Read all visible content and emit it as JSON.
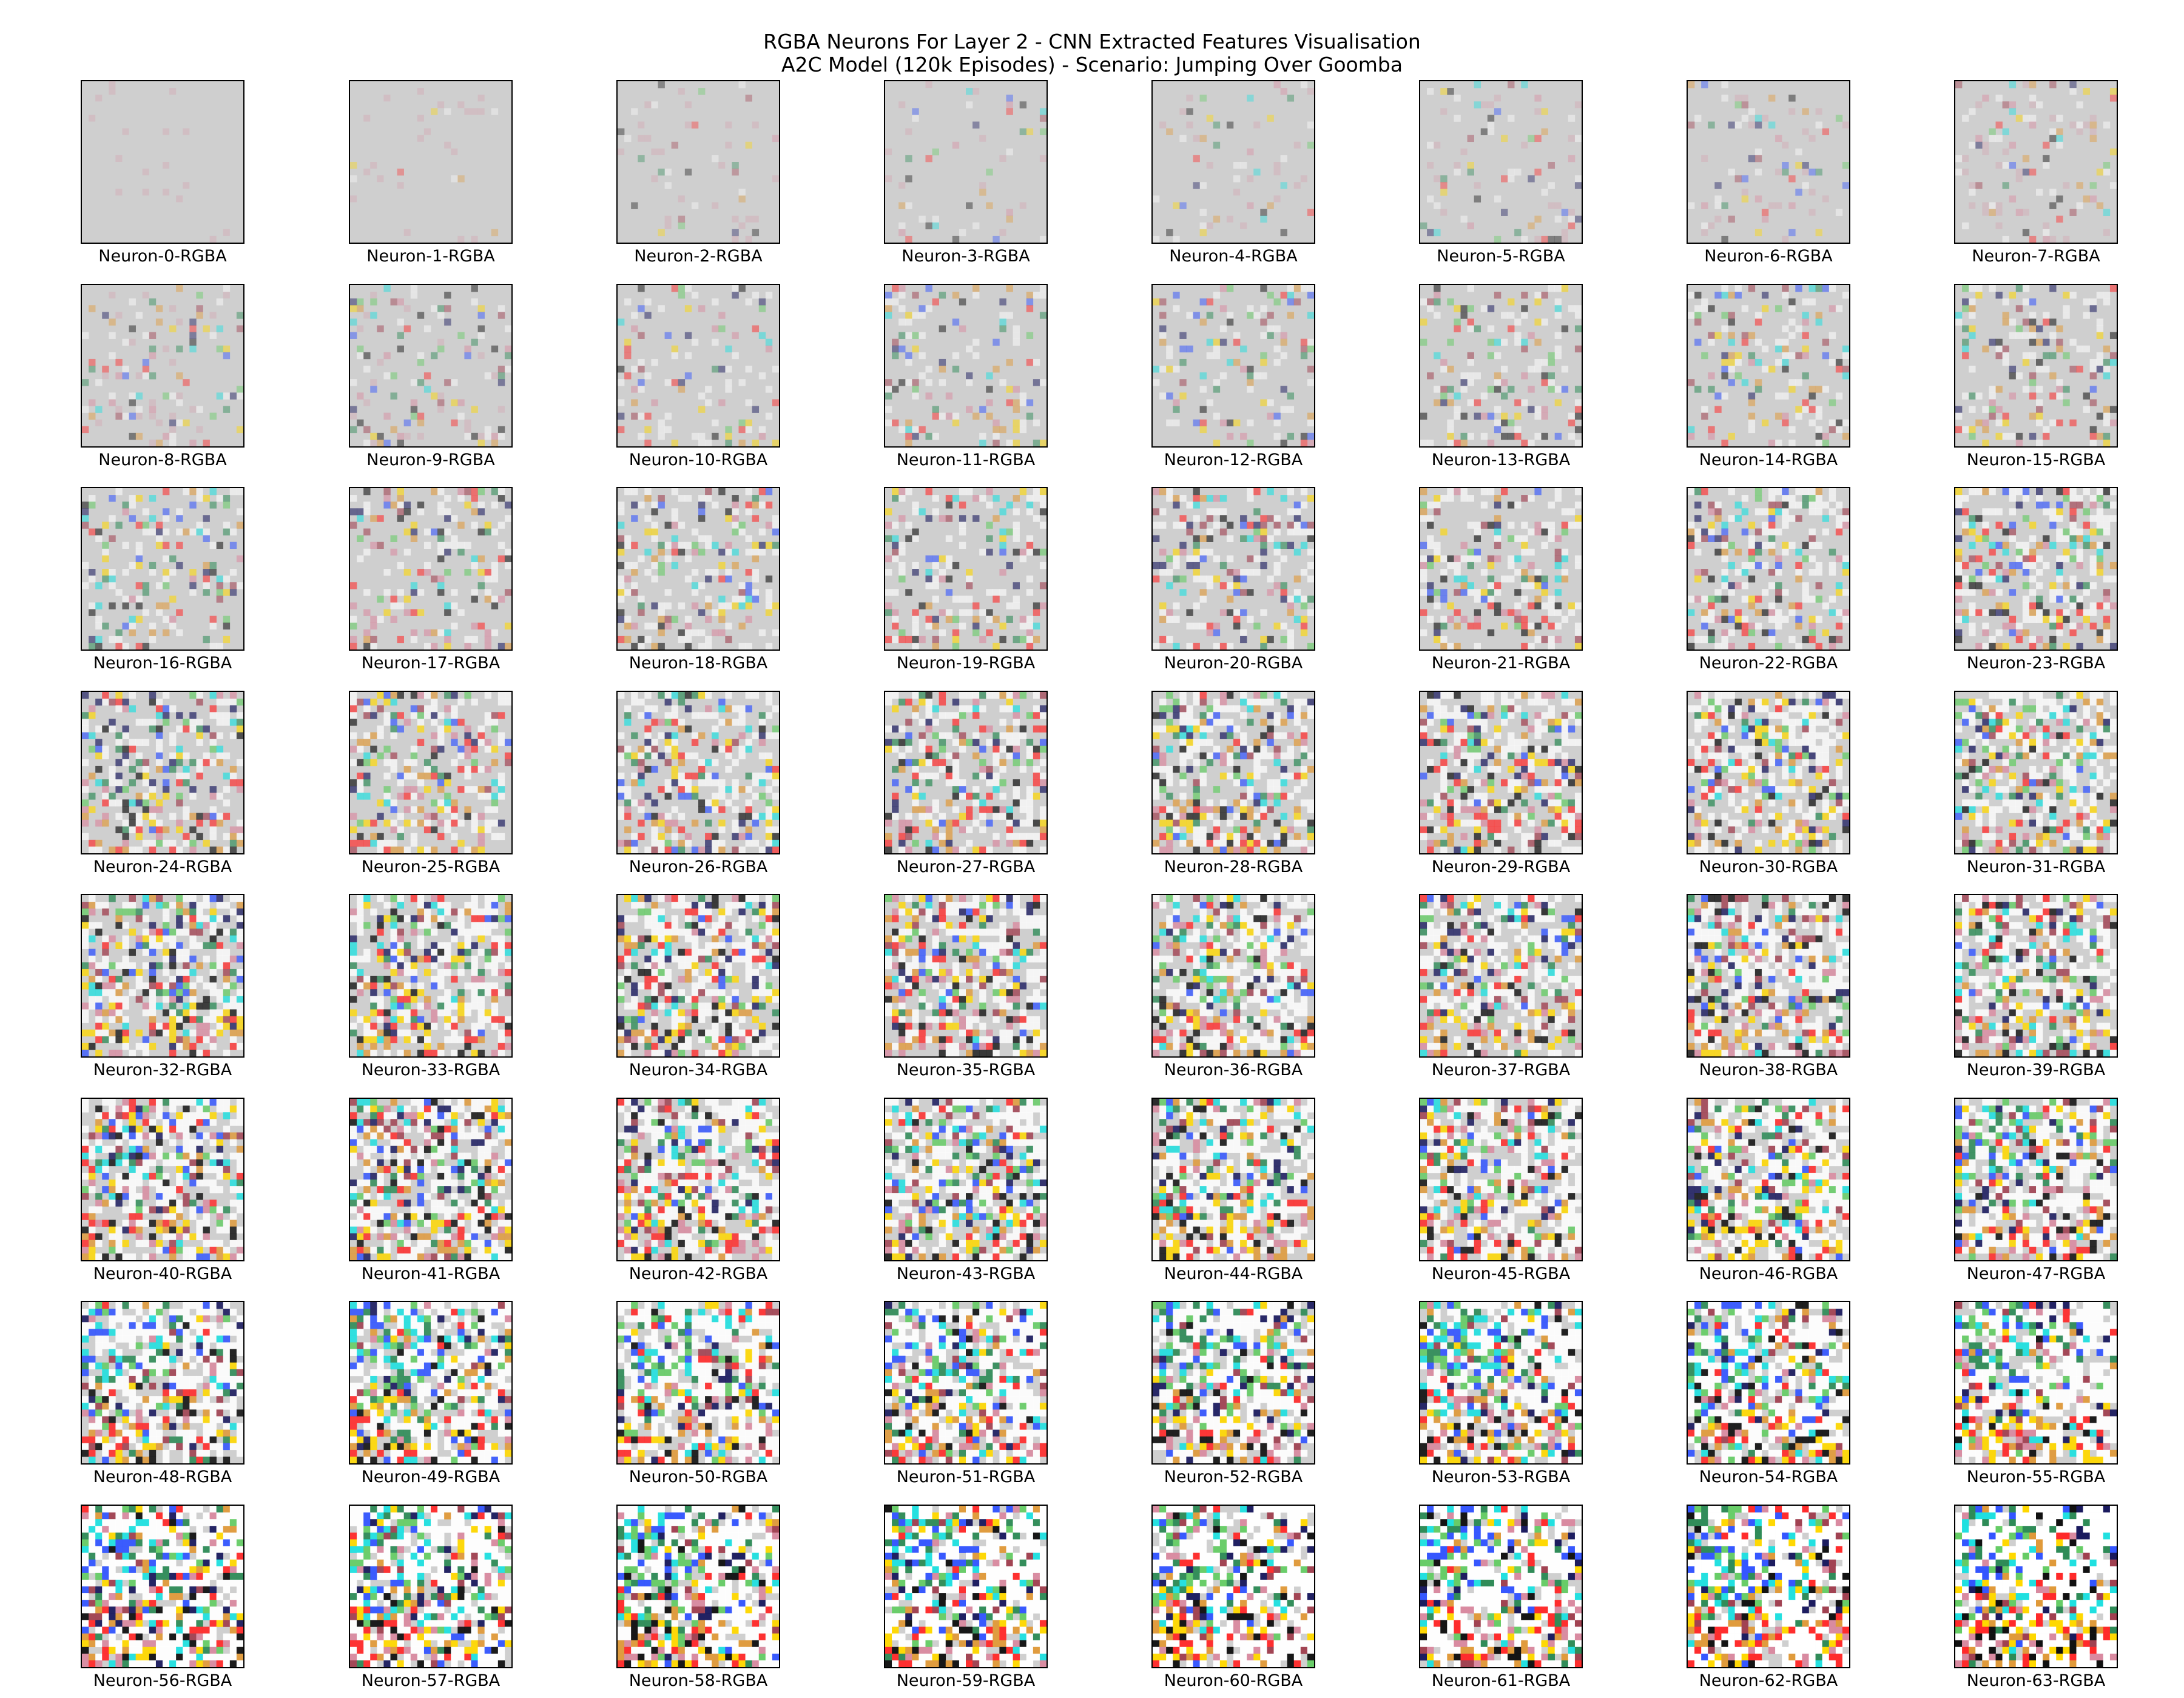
{
  "figure": {
    "title_line1": "RGBA Neurons For Layer 2 - CNN Extracted Features Visualisation",
    "title_line2": "A2C Model (120k Episodes) - Scenario: Jumping Over Goomba"
  },
  "grid": {
    "columns": 8,
    "rows": 8,
    "panels": [
      {
        "label": "Neuron-0-RGBA",
        "intensity": 0.0
      },
      {
        "label": "Neuron-1-RGBA",
        "intensity": 0.02
      },
      {
        "label": "Neuron-2-RGBA",
        "intensity": 0.05
      },
      {
        "label": "Neuron-3-RGBA",
        "intensity": 0.07
      },
      {
        "label": "Neuron-4-RGBA",
        "intensity": 0.09
      },
      {
        "label": "Neuron-5-RGBA",
        "intensity": 0.11
      },
      {
        "label": "Neuron-6-RGBA",
        "intensity": 0.13
      },
      {
        "label": "Neuron-7-RGBA",
        "intensity": 0.15
      },
      {
        "label": "Neuron-8-RGBA",
        "intensity": 0.17
      },
      {
        "label": "Neuron-9-RGBA",
        "intensity": 0.19
      },
      {
        "label": "Neuron-10-RGBA",
        "intensity": 0.21
      },
      {
        "label": "Neuron-11-RGBA",
        "intensity": 0.23
      },
      {
        "label": "Neuron-12-RGBA",
        "intensity": 0.25
      },
      {
        "label": "Neuron-13-RGBA",
        "intensity": 0.27
      },
      {
        "label": "Neuron-14-RGBA",
        "intensity": 0.29
      },
      {
        "label": "Neuron-15-RGBA",
        "intensity": 0.31
      },
      {
        "label": "Neuron-16-RGBA",
        "intensity": 0.33
      },
      {
        "label": "Neuron-17-RGBA",
        "intensity": 0.35
      },
      {
        "label": "Neuron-18-RGBA",
        "intensity": 0.37
      },
      {
        "label": "Neuron-19-RGBA",
        "intensity": 0.39
      },
      {
        "label": "Neuron-20-RGBA",
        "intensity": 0.41
      },
      {
        "label": "Neuron-21-RGBA",
        "intensity": 0.43
      },
      {
        "label": "Neuron-22-RGBA",
        "intensity": 0.45
      },
      {
        "label": "Neuron-23-RGBA",
        "intensity": 0.47
      },
      {
        "label": "Neuron-24-RGBA",
        "intensity": 0.49
      },
      {
        "label": "Neuron-25-RGBA",
        "intensity": 0.51
      },
      {
        "label": "Neuron-26-RGBA",
        "intensity": 0.53
      },
      {
        "label": "Neuron-27-RGBA",
        "intensity": 0.55
      },
      {
        "label": "Neuron-28-RGBA",
        "intensity": 0.57
      },
      {
        "label": "Neuron-29-RGBA",
        "intensity": 0.59
      },
      {
        "label": "Neuron-30-RGBA",
        "intensity": 0.61
      },
      {
        "label": "Neuron-31-RGBA",
        "intensity": 0.63
      },
      {
        "label": "Neuron-32-RGBA",
        "intensity": 0.65
      },
      {
        "label": "Neuron-33-RGBA",
        "intensity": 0.66
      },
      {
        "label": "Neuron-34-RGBA",
        "intensity": 0.67
      },
      {
        "label": "Neuron-35-RGBA",
        "intensity": 0.68
      },
      {
        "label": "Neuron-36-RGBA",
        "intensity": 0.69
      },
      {
        "label": "Neuron-37-RGBA",
        "intensity": 0.7
      },
      {
        "label": "Neuron-38-RGBA",
        "intensity": 0.71
      },
      {
        "label": "Neuron-39-RGBA",
        "intensity": 0.72
      },
      {
        "label": "Neuron-40-RGBA",
        "intensity": 0.74
      },
      {
        "label": "Neuron-41-RGBA",
        "intensity": 0.75
      },
      {
        "label": "Neuron-42-RGBA",
        "intensity": 0.76
      },
      {
        "label": "Neuron-43-RGBA",
        "intensity": 0.77
      },
      {
        "label": "Neuron-44-RGBA",
        "intensity": 0.78
      },
      {
        "label": "Neuron-45-RGBA",
        "intensity": 0.79
      },
      {
        "label": "Neuron-46-RGBA",
        "intensity": 0.8
      },
      {
        "label": "Neuron-47-RGBA",
        "intensity": 0.81
      },
      {
        "label": "Neuron-48-RGBA",
        "intensity": 0.83
      },
      {
        "label": "Neuron-49-RGBA",
        "intensity": 0.84
      },
      {
        "label": "Neuron-50-RGBA",
        "intensity": 0.85
      },
      {
        "label": "Neuron-51-RGBA",
        "intensity": 0.86
      },
      {
        "label": "Neuron-52-RGBA",
        "intensity": 0.87
      },
      {
        "label": "Neuron-53-RGBA",
        "intensity": 0.88
      },
      {
        "label": "Neuron-54-RGBA",
        "intensity": 0.89
      },
      {
        "label": "Neuron-55-RGBA",
        "intensity": 0.9
      },
      {
        "label": "Neuron-56-RGBA",
        "intensity": 0.92
      },
      {
        "label": "Neuron-57-RGBA",
        "intensity": 0.93
      },
      {
        "label": "Neuron-58-RGBA",
        "intensity": 0.94
      },
      {
        "label": "Neuron-59-RGBA",
        "intensity": 0.95
      },
      {
        "label": "Neuron-60-RGBA",
        "intensity": 0.96
      },
      {
        "label": "Neuron-61-RGBA",
        "intensity": 0.97
      },
      {
        "label": "Neuron-62-RGBA",
        "intensity": 0.98
      },
      {
        "label": "Neuron-63-RGBA",
        "intensity": 1.0
      }
    ]
  },
  "colors": {
    "base_gray": "#cfcfcf",
    "frame": "#000000",
    "text": "#000000",
    "palette": [
      "#ffffff",
      "#ff2a2a",
      "#ffd800",
      "#2e8b57",
      "#20e0e0",
      "#1a1a5e",
      "#111111",
      "#d98aa0",
      "#66cc66",
      "#e09a3a",
      "#3355ff",
      "#a04050"
    ]
  }
}
